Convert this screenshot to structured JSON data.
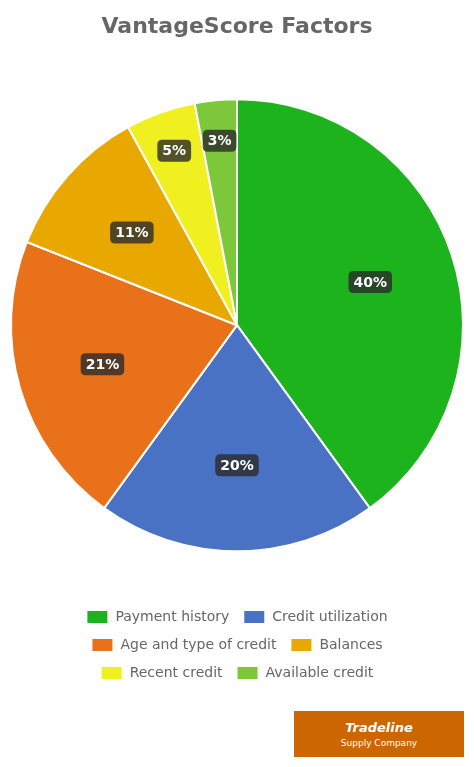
{
  "chart_data": {
    "type": "pie",
    "title": "VantageScore Factors",
    "categories": [
      "Payment history",
      "Credit utilization",
      "Age and type of credit",
      "Balances",
      "Recent credit",
      "Available credit"
    ],
    "values": [
      40,
      20,
      21,
      11,
      5,
      3
    ],
    "value_labels": [
      "40%",
      "20%",
      "21%",
      "11%",
      "5%",
      "3%"
    ],
    "colors": [
      "#1db31d",
      "#4a72c4",
      "#e8711a",
      "#e8a800",
      "#f0f020",
      "#7dc83a"
    ],
    "data_labels": true,
    "legend": "bottom",
    "annotations": [
      "Tradeline",
      "Supply Company"
    ]
  }
}
